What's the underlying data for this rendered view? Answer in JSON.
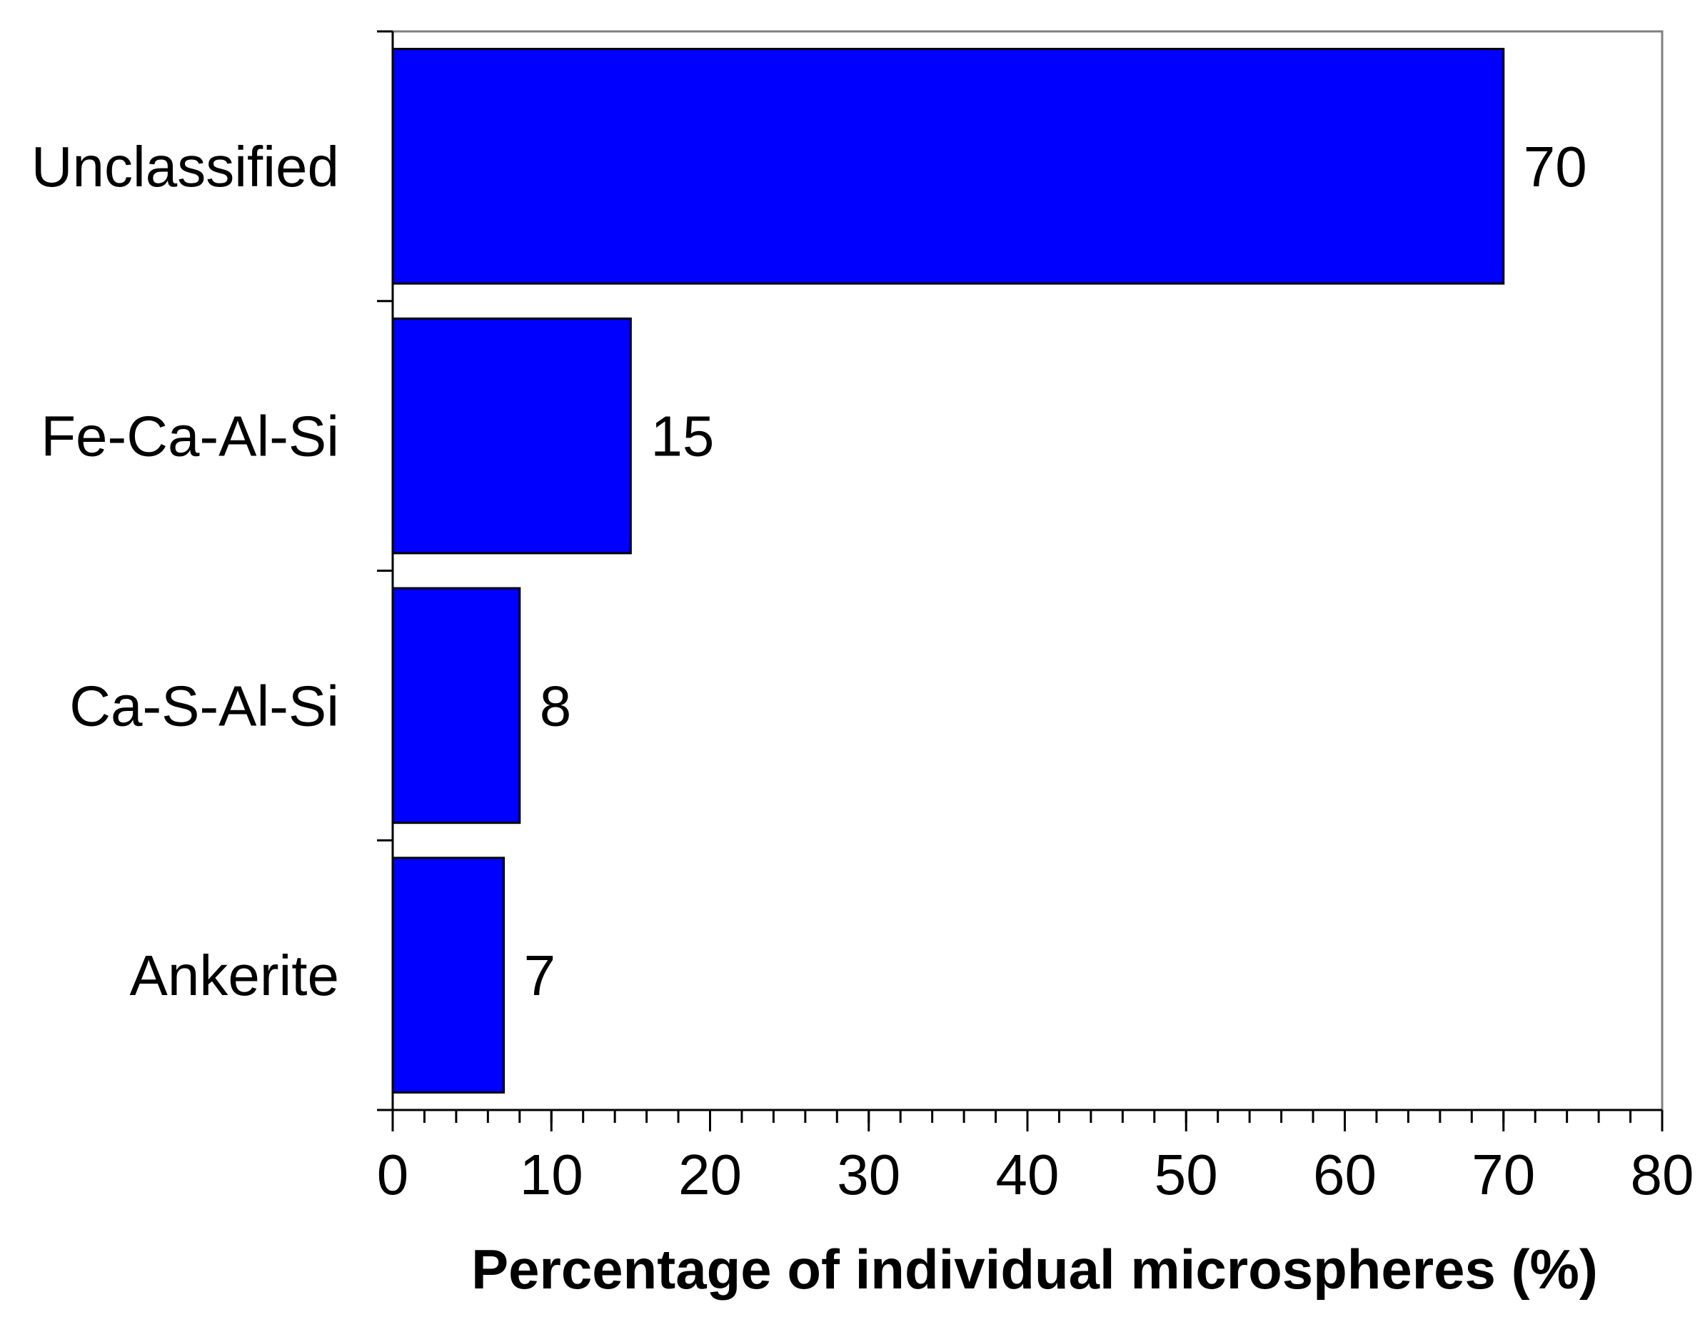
{
  "chart_data": {
    "type": "bar",
    "orientation": "horizontal",
    "categories": [
      "Unclassified",
      "Fe-Ca-Al-Si",
      "Ca-S-Al-Si",
      "Ankerite"
    ],
    "values": [
      70,
      15,
      8,
      7
    ],
    "data_labels": [
      "70",
      "15",
      "8",
      "7"
    ],
    "xlabel": "Percentage of individual microspheres (%)",
    "xlim": [
      0,
      80
    ],
    "xticks": [
      0,
      10,
      20,
      30,
      40,
      50,
      60,
      70,
      80
    ],
    "xtick_labels": [
      "0",
      "10",
      "20",
      "30",
      "40",
      "50",
      "60",
      "70",
      "80"
    ],
    "minor_tick_step": 2,
    "grid": false,
    "legend": "none",
    "bar_color": "#0000FF",
    "bar_edge_color": "#000000",
    "frame_color": "#808080"
  }
}
